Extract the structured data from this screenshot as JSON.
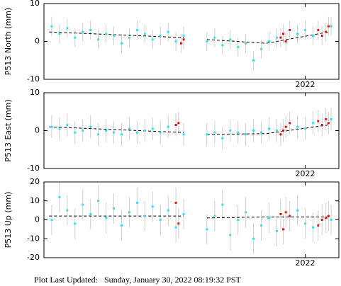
{
  "chart_data": [
    {
      "type": "scatter",
      "ylabel": "P513 North (mm)",
      "xlim": [
        2020.99,
        2022.13
      ],
      "xticks": [
        2022
      ],
      "ylim": [
        -10,
        10
      ],
      "yticks": [
        -10,
        0,
        10
      ],
      "series": [
        {
          "color": "#33e3f2",
          "error": 2.5,
          "x": [
            2021.02,
            2021.05,
            2021.08,
            2021.11,
            2021.14,
            2021.17,
            2021.2,
            2021.23,
            2021.26,
            2021.29,
            2021.32,
            2021.35,
            2021.38,
            2021.41,
            2021.44,
            2021.47,
            2021.5,
            2021.53,
            2021.62,
            2021.65,
            2021.68,
            2021.71,
            2021.74,
            2021.77,
            2021.8,
            2021.83,
            2021.86,
            2021.89,
            2021.97,
            2022.0,
            2022.03,
            2022.1
          ],
          "values": [
            4,
            2,
            3.5,
            1,
            2.5,
            3,
            0.5,
            2,
            1.5,
            -0.5,
            1,
            3,
            2,
            0.5,
            1.5,
            2.5,
            0,
            1.5,
            0,
            1,
            -1,
            0.5,
            -1.5,
            -0.5,
            -5,
            -2,
            0,
            1,
            2,
            3,
            1.5,
            4
          ]
        },
        {
          "color": "#e01515",
          "error": 2.5,
          "x": [
            2021.52,
            2021.53,
            2021.905,
            2021.915,
            2021.925,
            2021.94,
            2022.05,
            2022.065,
            2022.08,
            2022.09
          ],
          "values": [
            -0.5,
            0.5,
            1,
            2,
            0,
            3,
            3,
            1.5,
            2.5,
            4
          ]
        },
        {
          "color": "#000000",
          "line": "dashed",
          "x": [
            2021.01,
            2021.53,
            null,
            2021.62,
            2021.85,
            2022.09
          ],
          "values": [
            2.5,
            1,
            null,
            0.5,
            -0.5,
            2.5
          ]
        }
      ]
    },
    {
      "type": "scatter",
      "ylabel": "P513 East (mm)",
      "xlim": [
        2020.99,
        2022.13
      ],
      "xticks": [
        2022
      ],
      "ylim": [
        -10,
        10
      ],
      "yticks": [
        -10,
        0,
        10
      ],
      "series": [
        {
          "color": "#33e3f2",
          "error": 3,
          "x": [
            2021.02,
            2021.05,
            2021.08,
            2021.11,
            2021.14,
            2021.17,
            2021.2,
            2021.23,
            2021.26,
            2021.29,
            2021.32,
            2021.35,
            2021.38,
            2021.41,
            2021.44,
            2021.47,
            2021.5,
            2021.53,
            2021.62,
            2021.65,
            2021.68,
            2021.71,
            2021.74,
            2021.77,
            2021.8,
            2021.83,
            2021.86,
            2021.89,
            2021.97,
            2022.0,
            2022.03,
            2022.1
          ],
          "values": [
            1,
            0.5,
            1.5,
            -0.5,
            0,
            1,
            -1,
            0,
            -0.5,
            -1,
            0.5,
            -0.5,
            0,
            0.5,
            -0.5,
            1,
            1.5,
            -1,
            -1,
            -0.5,
            -2,
            0,
            -0.5,
            -1,
            0,
            -0.5,
            0.5,
            0,
            1,
            0.5,
            2,
            3
          ]
        },
        {
          "color": "#e01515",
          "error": 3,
          "x": [
            2021.5,
            2021.51,
            2021.905,
            2021.915,
            2021.925,
            2021.94,
            2022.05,
            2022.065,
            2022.08,
            2022.09
          ],
          "values": [
            1.5,
            2,
            -1,
            0,
            1,
            2,
            2.5,
            1.5,
            3,
            2
          ]
        },
        {
          "color": "#000000",
          "line": "dashed",
          "x": [
            2021.01,
            2021.53,
            null,
            2021.62,
            2021.85,
            2022.09
          ],
          "values": [
            1,
            -0.5,
            null,
            -1,
            -0.8,
            1.5
          ]
        }
      ]
    },
    {
      "type": "scatter",
      "ylabel": "P513 Up (mm)",
      "xlim": [
        2020.99,
        2022.13
      ],
      "xticks": [
        2022
      ],
      "ylim": [
        -20,
        20
      ],
      "yticks": [
        -20,
        -10,
        0,
        10,
        20
      ],
      "series": [
        {
          "color": "#33e3f2",
          "error": 8,
          "x": [
            2021.02,
            2021.05,
            2021.08,
            2021.11,
            2021.14,
            2021.17,
            2021.2,
            2021.23,
            2021.26,
            2021.29,
            2021.32,
            2021.35,
            2021.38,
            2021.41,
            2021.44,
            2021.47,
            2021.5,
            2021.53,
            2021.62,
            2021.65,
            2021.68,
            2021.71,
            2021.74,
            2021.77,
            2021.8,
            2021.83,
            2021.86,
            2021.89,
            2021.97,
            2022.0,
            2022.03,
            2022.1
          ],
          "values": [
            0,
            12,
            5,
            -2,
            8,
            3,
            10,
            1,
            6,
            -3,
            4,
            9,
            2,
            7,
            0,
            5,
            -4,
            3,
            -5,
            2,
            8,
            -8,
            0,
            4,
            -10,
            -3,
            1,
            -6,
            5,
            -2,
            -4,
            0
          ]
        },
        {
          "color": "#e01515",
          "error": 8,
          "x": [
            2021.5,
            2021.51,
            2021.905,
            2021.915,
            2021.925,
            2021.94,
            2022.05,
            2022.065,
            2022.08,
            2022.09
          ],
          "values": [
            9,
            -2,
            3,
            -5,
            4,
            2,
            -3,
            0,
            1,
            2
          ]
        },
        {
          "color": "#000000",
          "line": "dashed",
          "x": [
            2021.01,
            2021.53,
            null,
            2021.62,
            2021.85,
            2022.09
          ],
          "values": [
            2,
            2,
            null,
            1,
            1.5,
            1.5
          ]
        }
      ]
    }
  ],
  "footer": "Plot Last Updated:   Sunday, January 30, 2022 08:19:32 PST"
}
